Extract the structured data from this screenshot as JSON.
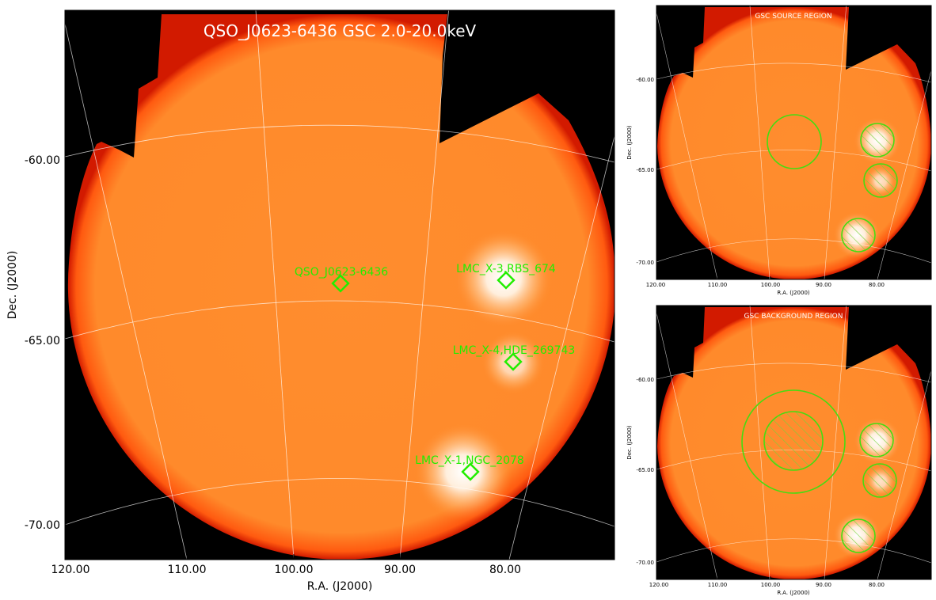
{
  "main_panel": {
    "title": "QSO_J0623-6436 GSC 2.0-20.0keV",
    "xlabel": "R.A. (J2000)",
    "ylabel": "Dec. (J2000)",
    "x_ticks": [
      "120.00",
      "110.00",
      "100.00",
      "90.00",
      "80.00"
    ],
    "y_ticks": [
      "-60.00",
      "-65.00",
      "-70.00"
    ],
    "sources": [
      {
        "label": "QSO_J0623-6436"
      },
      {
        "label": "LMC_X-3,RBS_674"
      },
      {
        "label": "LMC_X-4,HDE_269743"
      },
      {
        "label": "LMC_X-1,NGC_2078"
      }
    ]
  },
  "source_panel": {
    "title": "GSC SOURCE REGION",
    "xlabel": "R.A. (J2000)",
    "ylabel": "Dec. (J2000)",
    "x_ticks": [
      "120.00",
      "110.00",
      "100.00",
      "90.00",
      "80.00"
    ],
    "y_ticks": [
      "-60.00",
      "-65.00",
      "-70.00"
    ]
  },
  "background_panel": {
    "title": "GSC BACKGROUND REGION",
    "xlabel": "R.A. (J2000)",
    "ylabel": "Dec. (J2000)",
    "x_ticks": [
      "120.00",
      "110.00",
      "100.00",
      "90.00",
      "80.00"
    ],
    "y_ticks": [
      "-60.00",
      "-65.00",
      "-70.00"
    ]
  },
  "colors": {
    "sky": "#ff8a2b",
    "sky_edge": "#ff3b00",
    "hot": "#fff6ea",
    "region": "#33dd00",
    "marker_text": "#22ee00",
    "grid": "#ffffff"
  }
}
